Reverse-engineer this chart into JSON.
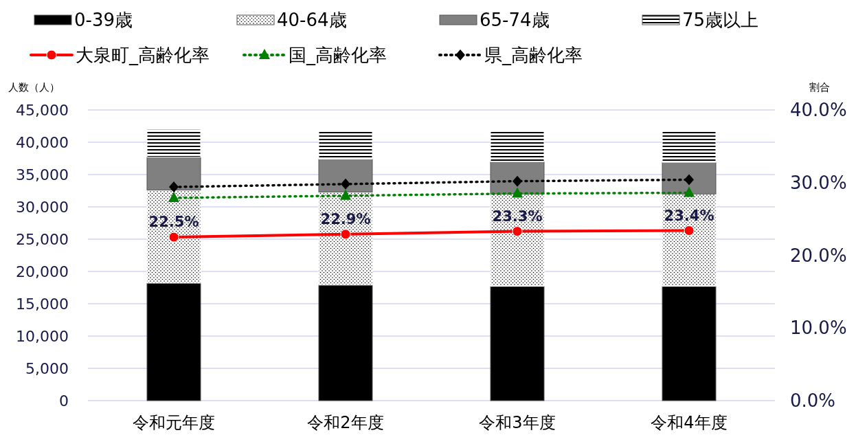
{
  "chart_data": {
    "type": "bar",
    "stacked": true,
    "categories": [
      "令和元年度",
      "令和2年度",
      "令和3年度",
      "令和4年度"
    ],
    "ylabel": "人数（人）",
    "y2label": "割合",
    "ylim": [
      0,
      45000
    ],
    "yticks": [
      {
        "value": 0,
        "label": "0"
      },
      {
        "value": 5000,
        "label": "5,000"
      },
      {
        "value": 10000,
        "label": "10,000"
      },
      {
        "value": 15000,
        "label": "15,000"
      },
      {
        "value": 20000,
        "label": "20,000"
      },
      {
        "value": 25000,
        "label": "25,000"
      },
      {
        "value": 30000,
        "label": "30,000"
      },
      {
        "value": 35000,
        "label": "35,000"
      },
      {
        "value": 40000,
        "label": "40,000"
      },
      {
        "value": 45000,
        "label": "45,000"
      }
    ],
    "y2lim": [
      0,
      40
    ],
    "y2ticks": [
      {
        "value": 0,
        "label": "0.0%"
      },
      {
        "value": 10,
        "label": "10.0%"
      },
      {
        "value": 20,
        "label": "20.0%"
      },
      {
        "value": 30,
        "label": "30.0%"
      },
      {
        "value": 40,
        "label": "40.0%"
      }
    ],
    "grid": "y",
    "legend": "top",
    "series": [
      {
        "name": "0-39歳",
        "color": "#000000",
        "values": [
          18200,
          17900,
          17700,
          17700
        ]
      },
      {
        "name": "40-64歳",
        "color": "#ffffff",
        "values": [
          14400,
          14400,
          14300,
          14300
        ]
      },
      {
        "name": "65-74歳",
        "color": "#808080",
        "values": [
          5100,
          5100,
          5000,
          4900
        ]
      },
      {
        "name": "75歳以上",
        "color": "#ffffff",
        "values": [
          4300,
          4400,
          4700,
          5000
        ]
      },
      {
        "name": "大泉町_高齢化率",
        "type": "line",
        "axis": "y2",
        "color": "#ff0000",
        "marker": "circle",
        "line_style": "solid",
        "values": [
          22.5,
          22.9,
          23.3,
          23.4
        ],
        "value_labels": [
          "22.5%",
          "22.9%",
          "23.3%",
          "23.4%"
        ]
      },
      {
        "name": "国_高齢化率",
        "type": "line",
        "axis": "y2",
        "color": "#008000",
        "marker": "triangle",
        "line_style": "dotted",
        "values": [
          27.9,
          28.2,
          28.5,
          28.6
        ]
      },
      {
        "name": "県_高齢化率",
        "type": "line",
        "axis": "y2",
        "color": "#000000",
        "marker": "diamond",
        "line_style": "dotted",
        "values": [
          29.4,
          29.8,
          30.2,
          30.4
        ]
      }
    ]
  }
}
